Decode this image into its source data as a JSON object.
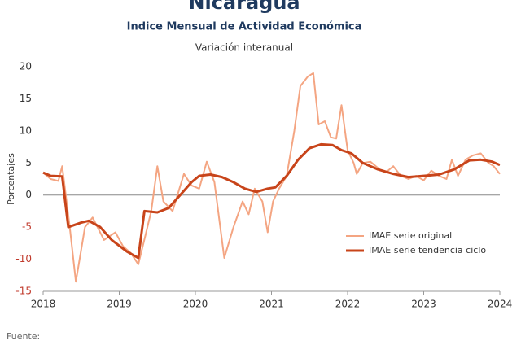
{
  "chart_data": {
    "type": "line",
    "title": "Nicaragua",
    "subtitle": "Indice Mensual de  Actividad Económica",
    "subtitle2": "Variación interanual",
    "ylabel": "Porcentajes",
    "source": "Fuente:",
    "xlim": [
      2018,
      2024
    ],
    "xticks": [
      2018,
      2019,
      2020,
      2021,
      2022,
      2023,
      2024
    ],
    "ylim": [
      -15,
      20
    ],
    "yticks": [
      20,
      15,
      10,
      5,
      0,
      -5,
      -10,
      -15
    ],
    "negative_tick_color": "#c0392b",
    "zero_line": true,
    "legend": "lower right",
    "series": [
      {
        "name": "IMAE serie original",
        "color": "#f4a582",
        "width": 2,
        "x": [
          2018.0,
          2018.1,
          2018.2,
          2018.25,
          2018.35,
          2018.43,
          2018.55,
          2018.65,
          2018.8,
          2018.95,
          2019.05,
          2019.15,
          2019.25,
          2019.35,
          2019.42,
          2019.5,
          2019.58,
          2019.7,
          2019.85,
          2019.95,
          2020.05,
          2020.15,
          2020.25,
          2020.38,
          2020.5,
          2020.62,
          2020.7,
          2020.78,
          2020.88,
          2020.95,
          2021.02,
          2021.1,
          2021.2,
          2021.3,
          2021.38,
          2021.48,
          2021.55,
          2021.62,
          2021.7,
          2021.78,
          2021.85,
          2021.92,
          2022.0,
          2022.08,
          2022.12,
          2022.2,
          2022.3,
          2022.42,
          2022.5,
          2022.6,
          2022.7,
          2022.8,
          2022.9,
          2023.0,
          2023.1,
          2023.2,
          2023.3,
          2023.37,
          2023.45,
          2023.55,
          2023.65,
          2023.75,
          2023.85,
          2023.92,
          2024.0
        ],
        "values": [
          3.5,
          2.5,
          2.2,
          4.5,
          -5,
          -13.5,
          -5,
          -3.5,
          -7,
          -5.8,
          -8,
          -9,
          -10.8,
          -6,
          -2.5,
          4.5,
          -1,
          -2.5,
          3.3,
          1.5,
          1,
          5.2,
          2,
          -9.8,
          -5,
          -1,
          -3,
          1,
          -1,
          -5.8,
          -1,
          1,
          3,
          10,
          17,
          18.5,
          19,
          11,
          11.5,
          9,
          8.8,
          14,
          7,
          5,
          3.3,
          5,
          5.2,
          4,
          3.5,
          4.5,
          3,
          2.5,
          3,
          2.3,
          3.8,
          3,
          2.5,
          5.5,
          3,
          5.5,
          6.2,
          6.5,
          5,
          4.5,
          3.3
        ]
      },
      {
        "name": "IMAE serie  tendencia ciclo",
        "color": "#c8441a",
        "width": 3,
        "x": [
          2018.0,
          2018.1,
          2018.25,
          2018.33,
          2018.5,
          2018.6,
          2018.75,
          2018.9,
          2019.1,
          2019.25,
          2019.33,
          2019.5,
          2019.65,
          2019.8,
          2019.95,
          2020.05,
          2020.2,
          2020.35,
          2020.5,
          2020.65,
          2020.8,
          2020.95,
          2021.05,
          2021.2,
          2021.35,
          2021.5,
          2021.65,
          2021.8,
          2021.92,
          2022.05,
          2022.2,
          2022.4,
          2022.6,
          2022.8,
          2023.0,
          2023.2,
          2023.4,
          2023.6,
          2023.75,
          2023.9,
          2024.0
        ],
        "values": [
          3.5,
          3,
          2.9,
          -5,
          -4.3,
          -4,
          -5,
          -7,
          -8.8,
          -9.8,
          -2.5,
          -2.7,
          -2,
          0,
          2,
          3,
          3.2,
          2.8,
          2,
          1,
          0.5,
          1,
          1.2,
          3,
          5.5,
          7.3,
          7.9,
          7.8,
          7,
          6.5,
          5,
          4,
          3.3,
          2.8,
          3,
          3.2,
          4,
          5.4,
          5.5,
          5.2,
          4.7
        ]
      }
    ]
  }
}
